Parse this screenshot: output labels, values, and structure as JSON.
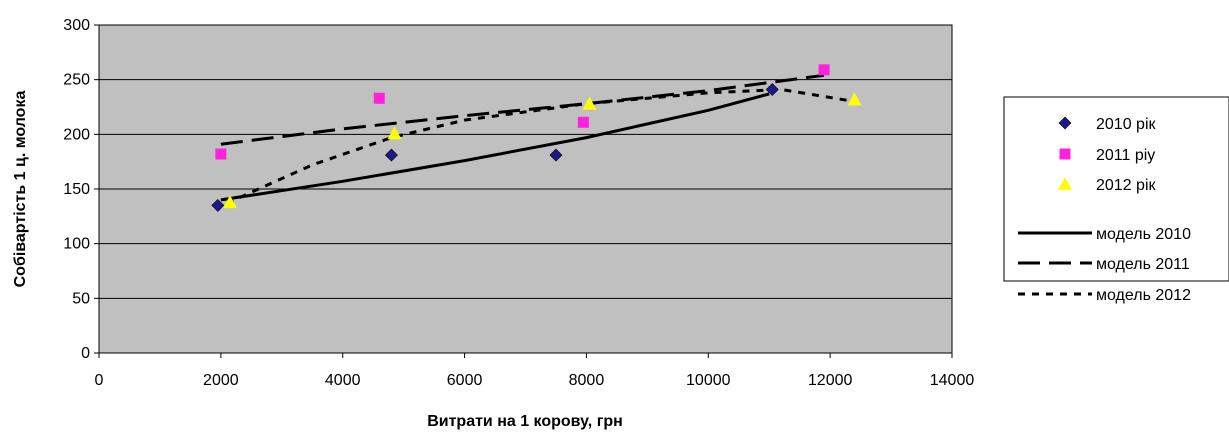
{
  "chart_data": {
    "type": "scatter",
    "title": "",
    "xlabel": "Витрати на 1 корову, грн",
    "ylabel": "Собівартість 1 ц. молока",
    "xlim": [
      0,
      14000
    ],
    "ylim": [
      0,
      300
    ],
    "xticks": [
      0,
      2000,
      4000,
      6000,
      8000,
      10000,
      12000,
      14000
    ],
    "yticks": [
      0,
      50,
      100,
      150,
      200,
      250,
      300
    ],
    "grid": "horizontal",
    "plot_background": "#c0c0c0",
    "legend_position": "right",
    "series": [
      {
        "name": "2010 рік",
        "kind": "points",
        "marker": "diamond",
        "color": "#1a1a8c",
        "x": [
          1950,
          4800,
          7500,
          11050
        ],
        "y": [
          135,
          181,
          181,
          241
        ]
      },
      {
        "name": "2011 ріу",
        "kind": "points",
        "marker": "square",
        "color": "#ff22dd",
        "x": [
          2000,
          4600,
          7950,
          11900
        ],
        "y": [
          182,
          233,
          211,
          259
        ]
      },
      {
        "name": "2012 рік",
        "kind": "points",
        "marker": "triangle",
        "color": "#ffff00",
        "x": [
          2150,
          4850,
          8050,
          12400
        ],
        "y": [
          138,
          201,
          228,
          232
        ]
      },
      {
        "name": "модель 2010",
        "kind": "line",
        "dash": "solid",
        "color": "#000000",
        "x": [
          2000,
          4000,
          6000,
          8000,
          10000,
          11000
        ],
        "y": [
          140,
          157,
          176,
          197,
          222,
          237
        ]
      },
      {
        "name": "модель 2011",
        "kind": "line",
        "dash": "long",
        "color": "#000000",
        "x": [
          2000,
          4000,
          6000,
          8000,
          10000,
          11900
        ],
        "y": [
          191,
          205,
          217,
          228,
          240,
          254
        ]
      },
      {
        "name": "модель 2012",
        "kind": "line",
        "dash": "short",
        "color": "#000000",
        "x": [
          2100,
          3500,
          4800,
          6000,
          8000,
          10000,
          11200,
          12400
        ],
        "y": [
          137,
          172,
          197,
          213,
          228,
          238,
          241,
          230
        ]
      }
    ]
  }
}
